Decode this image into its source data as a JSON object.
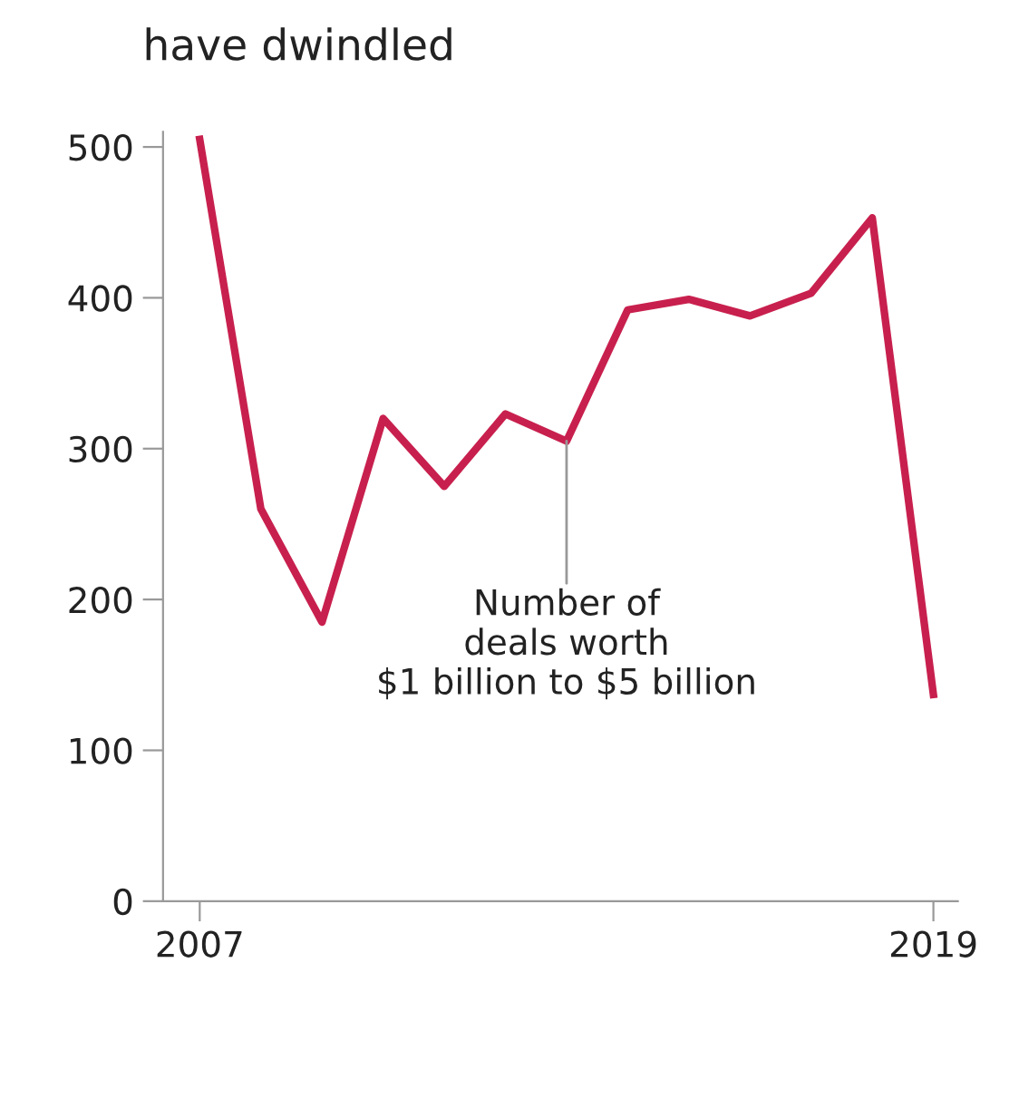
{
  "chart_data": {
    "type": "line",
    "title": "have dwindled",
    "x": [
      2007,
      2008,
      2009,
      2010,
      2011,
      2012,
      2013,
      2014,
      2015,
      2016,
      2017,
      2018,
      2019
    ],
    "series": [
      {
        "color": "#c8204e",
        "values": [
          505,
          260,
          185,
          320,
          275,
          323,
          305,
          392,
          399,
          388,
          403,
          453,
          137
        ]
      }
    ],
    "xlim": [
      2006.4,
      2019.4
    ],
    "xticks": [
      2007,
      2019
    ],
    "ylim": [
      0,
      510
    ],
    "yticks": [
      0,
      100,
      200,
      300,
      400,
      500
    ],
    "annotations": [
      {
        "text": "Number of\ndeals worth\n$1 billion to $5 billion",
        "x": 2013,
        "y": 305
      }
    ],
    "grid": false,
    "legend": false,
    "marker": "none",
    "line_style": "solid"
  }
}
